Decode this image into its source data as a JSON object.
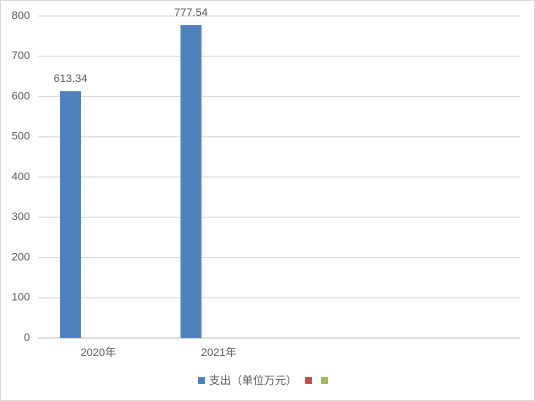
{
  "chart_data": {
    "type": "bar",
    "categories": [
      "2020年",
      "2021年",
      null,
      null
    ],
    "series": [
      {
        "name": "支出（单位万元）",
        "color": "#4f81bd",
        "values": [
          613.34,
          777.54,
          null,
          null
        ]
      },
      {
        "color": "#c0504d",
        "values": [
          null,
          null,
          null,
          null
        ]
      },
      {
        "color": "#9bbb59",
        "values": [
          null,
          null,
          null,
          null
        ]
      }
    ],
    "ylim": [
      0,
      800
    ],
    "yticks": [
      0,
      100,
      200,
      300,
      400,
      500,
      600,
      700,
      800
    ],
    "grid": true
  }
}
